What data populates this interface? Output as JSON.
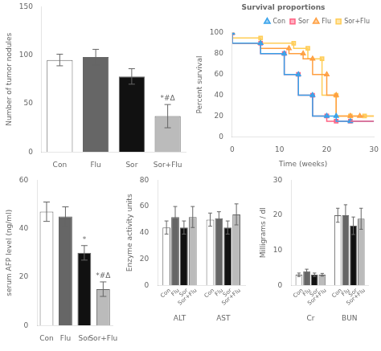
{
  "chart_data": [
    {
      "type": "bar",
      "categories": [
        "Con",
        "Flu",
        "Sor",
        "Sor+Flu"
      ],
      "values": [
        95,
        98,
        78,
        37
      ],
      "errors": [
        6,
        8,
        8,
        12
      ],
      "colors": [
        "white",
        "#666666",
        "#111111",
        "#bbbbbb"
      ],
      "ylabel": "Number of tumor nodules",
      "ylim": [
        0,
        150
      ],
      "yticks": [
        0,
        50,
        100,
        150
      ],
      "grid": false,
      "annotations": [
        {
          "text": "*#Δ",
          "category": "Sor+Flu"
        }
      ]
    },
    {
      "type": "line",
      "title": "Survival proportions",
      "xlabel": "Time (weeks)",
      "ylabel": "Percent survival",
      "xlim": [
        0,
        30
      ],
      "ylim": [
        0,
        100
      ],
      "xticks": [
        0,
        10,
        20,
        30
      ],
      "yticks": [
        0,
        20,
        40,
        60,
        80,
        100
      ],
      "grid": false,
      "legend": "upper right",
      "line_style": "steps",
      "series": [
        {
          "name": "Con",
          "marker": "triangle",
          "x": [
            0,
            6,
            11,
            14,
            17,
            20,
            22,
            25
          ],
          "values": [
            100,
            90,
            80,
            60,
            40,
            20,
            20,
            15
          ]
        },
        {
          "name": "Sor",
          "marker": "square",
          "x": [
            0,
            6,
            11,
            14,
            17,
            20,
            22,
            25
          ],
          "values": [
            100,
            90,
            80,
            60,
            40,
            20,
            15,
            15
          ]
        },
        {
          "name": "Flu",
          "marker": "triangle",
          "x": [
            0,
            6,
            12,
            15,
            17,
            20,
            22,
            25,
            27
          ],
          "values": [
            100,
            90,
            85,
            80,
            75,
            60,
            40,
            20,
            20
          ]
        },
        {
          "name": "Sor+Flu",
          "marker": "square",
          "x": [
            0,
            6,
            13,
            16,
            19,
            22,
            25,
            28
          ],
          "values": [
            100,
            95,
            90,
            85,
            75,
            40,
            20,
            20
          ]
        }
      ]
    },
    {
      "type": "bar",
      "categories": [
        "Con",
        "Flu",
        "Sor",
        "Sor+Flu"
      ],
      "values": [
        47,
        45,
        30,
        15
      ],
      "errors": [
        4,
        4,
        3,
        3
      ],
      "colors": [
        "white",
        "#666666",
        "#111111",
        "#bbbbbb"
      ],
      "ylabel": "serum AFP level (ng/ml)",
      "ylim": [
        0,
        60
      ],
      "yticks": [
        0,
        20,
        40,
        60
      ],
      "grid": false,
      "annotations": [
        {
          "text": "*",
          "category": "Sor"
        },
        {
          "text": "*#Δ",
          "category": "Sor+Flu"
        }
      ]
    },
    {
      "type": "bar",
      "categories": [
        "ALT",
        "AST"
      ],
      "series": [
        {
          "name": "Con",
          "color": "white",
          "values": [
            44,
            50
          ],
          "errors": [
            5,
            5
          ]
        },
        {
          "name": "Flu",
          "color": "#666666",
          "values": [
            52,
            51
          ],
          "errors": [
            8,
            5
          ]
        },
        {
          "name": "Sor",
          "color": "#111111",
          "values": [
            44,
            44
          ],
          "errors": [
            5,
            5
          ]
        },
        {
          "name": "Sor+Flu",
          "color": "#bbbbbb",
          "values": [
            52,
            54
          ],
          "errors": [
            8,
            8
          ]
        }
      ],
      "ylabel": "Enzyme activity units",
      "ylim": [
        0,
        80
      ],
      "yticks": [
        0,
        20,
        40,
        60,
        80
      ],
      "grid": false
    },
    {
      "type": "bar",
      "categories": [
        "Cr",
        "BUN"
      ],
      "series": [
        {
          "name": "Con",
          "color": "white",
          "values": [
            3,
            20
          ],
          "errors": [
            0.5,
            2
          ]
        },
        {
          "name": "Flu",
          "color": "#666666",
          "values": [
            4,
            20
          ],
          "errors": [
            0.6,
            3
          ]
        },
        {
          "name": "Sor",
          "color": "#111111",
          "values": [
            3,
            17
          ],
          "errors": [
            0.5,
            2.5
          ]
        },
        {
          "name": "Sor+Flu",
          "color": "#bbbbbb",
          "values": [
            3,
            19
          ],
          "errors": [
            0.4,
            3
          ]
        }
      ],
      "ylabel": "Milligrams / dl",
      "ylim": [
        0,
        30
      ],
      "yticks": [
        0,
        10,
        20,
        30
      ],
      "grid": false
    }
  ]
}
